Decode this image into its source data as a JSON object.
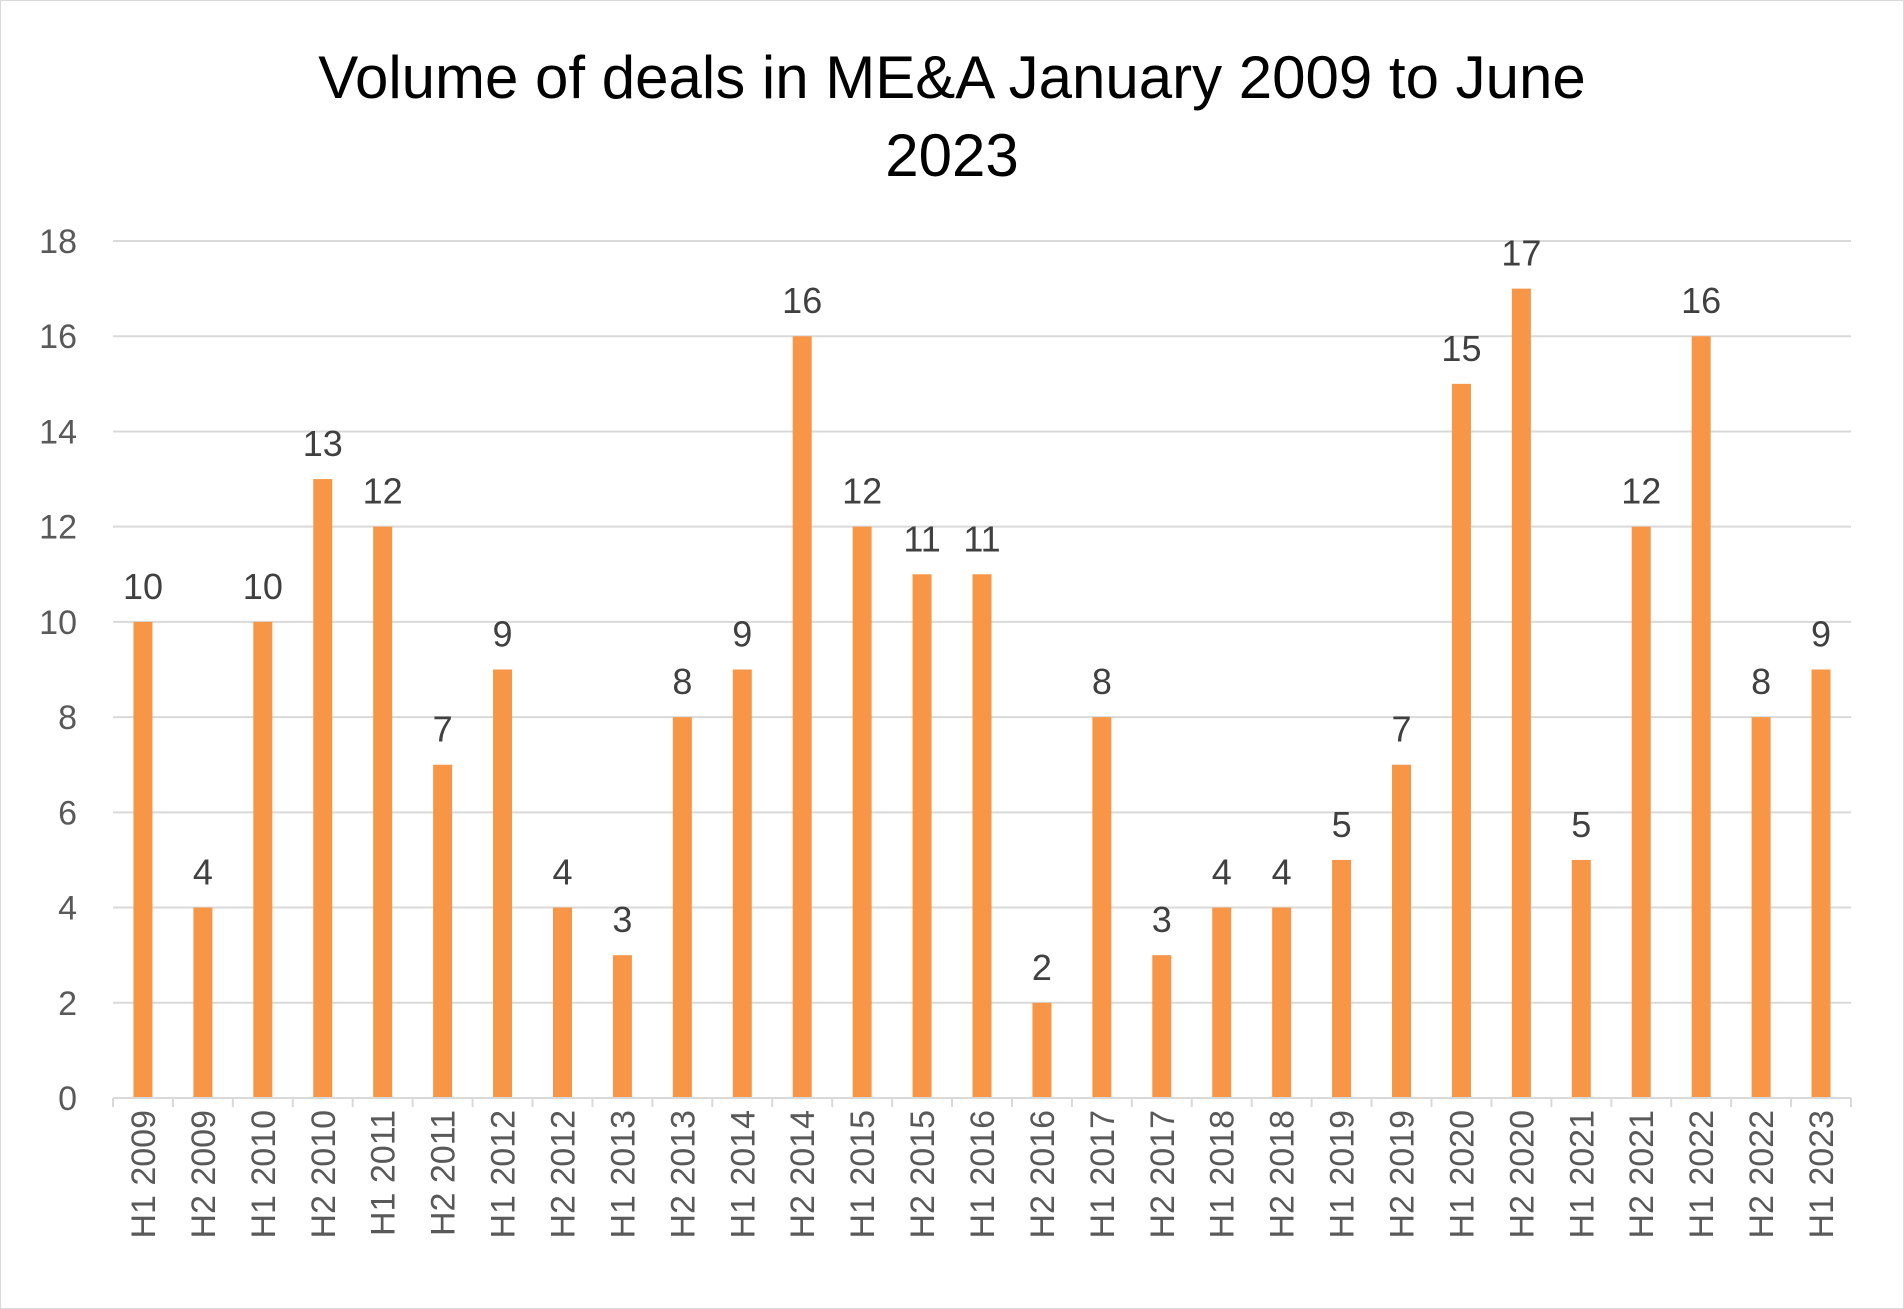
{
  "chart_data": {
    "type": "bar",
    "title_line1": "Volume of deals in ME&A January 2009 to June",
    "title_line2": "2023",
    "xlabel": "",
    "ylabel": "",
    "ylim": [
      0,
      18
    ],
    "yticks": [
      0,
      2,
      4,
      6,
      8,
      10,
      12,
      14,
      16,
      18
    ],
    "grid": true,
    "legend": "none",
    "bar_color": "#F79646",
    "gridline_color": "#D9D9D9",
    "categories": [
      "H1 2009",
      "H2 2009",
      "H1 2010",
      "H2 2010",
      "H1 2011",
      "H2 2011",
      "H1 2012",
      "H2 2012",
      "H1 2013",
      "H2 2013",
      "H1 2014",
      "H2 2014",
      "H1 2015",
      "H2 2015",
      "H1 2016",
      "H2 2016",
      "H1 2017",
      "H2 2017",
      "H1 2018",
      "H2 2018",
      "H1 2019",
      "H2 2019",
      "H1 2020",
      "H2 2020",
      "H1 2021",
      "H2 2021",
      "H1 2022",
      "H2 2022",
      "H1 2023"
    ],
    "values": [
      10,
      4,
      10,
      13,
      12,
      7,
      9,
      4,
      3,
      8,
      9,
      16,
      12,
      11,
      11,
      2,
      8,
      3,
      4,
      4,
      5,
      7,
      15,
      17,
      5,
      12,
      16,
      8,
      9
    ]
  }
}
